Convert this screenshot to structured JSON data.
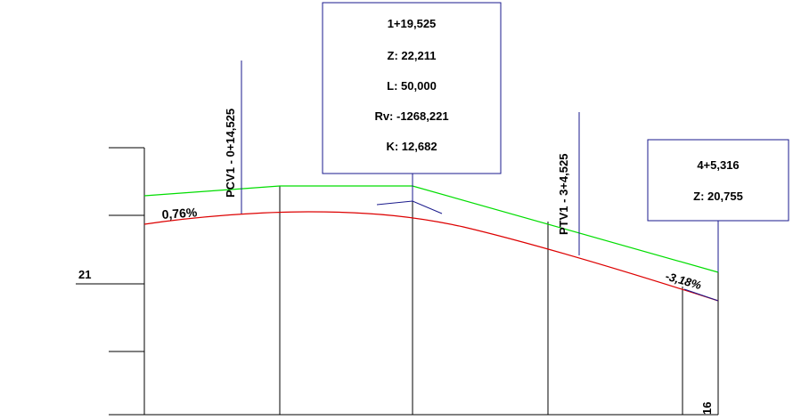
{
  "axis": {
    "elevation_label": "21",
    "station_label_bottom": "16"
  },
  "grades": {
    "left": "0,76%",
    "right": "-3,18%"
  },
  "pcv": {
    "label": "PCV1 - 0+14,525"
  },
  "ptv": {
    "label": "PTV1 - 3+4,525"
  },
  "piv_box": {
    "station": "1+19,525",
    "elevation": "Z: 22,211",
    "length": "L: 50,000",
    "radius": "Rv: -1268,221",
    "k_value": "K: 12,682"
  },
  "end_box": {
    "station": "4+5,316",
    "elevation": "Z: 20,755"
  },
  "colors": {
    "design_line": "#00dd00",
    "terrain_line": "#dd0000",
    "annotation_line": "#1a1a8c",
    "grid_line": "#000000"
  }
}
